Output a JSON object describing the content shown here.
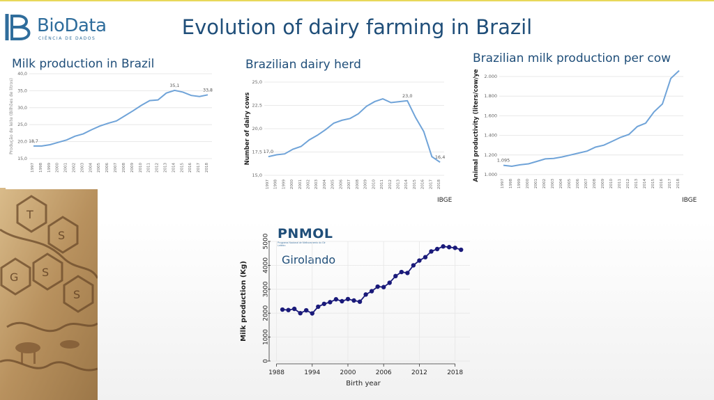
{
  "logo": {
    "brand": "BioData",
    "tagline": "CIÊNCIA DE DADOS"
  },
  "title": "Evolution of dairy farming in Brazil",
  "charts": {
    "milk": {
      "title": "Milk production in Brazil",
      "source": ""
    },
    "herd": {
      "title": "Brazilian dairy herd",
      "source": "IBGE"
    },
    "percow": {
      "title": "Brazilian milk production per cow",
      "source": "IBGE"
    },
    "giro": {
      "brand": "PNMOL",
      "brand_sub": "Programa Nacional de Melhoramento do Gir Leiteiro",
      "series_label": "Girolando"
    }
  },
  "chart_data": [
    {
      "id": "milk",
      "type": "line",
      "title": "Milk production in Brazil",
      "ylabel": "Produção de leite (Bilhões de litros)",
      "xlabel": "",
      "ylim": [
        15,
        40
      ],
      "yticks": [
        "15,0",
        "20,0",
        "25,0",
        "30,0",
        "35,0",
        "40,0"
      ],
      "x": [
        "1997",
        "1998",
        "1999",
        "2000",
        "2001",
        "2002",
        "2003",
        "2004",
        "2005",
        "2006",
        "2007",
        "2008",
        "2009",
        "2010",
        "2011",
        "2012",
        "2013",
        "2014",
        "2015",
        "2016",
        "2017",
        "2018"
      ],
      "values": [
        18.7,
        18.7,
        19.1,
        19.8,
        20.5,
        21.6,
        22.3,
        23.5,
        24.6,
        25.4,
        26.1,
        27.6,
        29.1,
        30.7,
        32.1,
        32.3,
        34.3,
        35.1,
        34.6,
        33.6,
        33.3,
        33.8
      ],
      "annotations": [
        {
          "index": 0,
          "label": "18,7"
        },
        {
          "index": 17,
          "label": "35,1"
        },
        {
          "index": 21,
          "label": "33,8"
        }
      ],
      "color": "#6fa3d8",
      "grid": true
    },
    {
      "id": "herd",
      "type": "line",
      "title": "Brazilian dairy herd",
      "ylabel": "Number of dairy cows",
      "xlabel": "",
      "ylim": [
        15,
        25
      ],
      "yticks": [
        "15,0",
        "17,5",
        "20,0",
        "22,5",
        "25,0"
      ],
      "x": [
        "1997",
        "1998",
        "1999",
        "2000",
        "2001",
        "2002",
        "2003",
        "2004",
        "2005",
        "2006",
        "2007",
        "2008",
        "2009",
        "2010",
        "2011",
        "2012",
        "2013",
        "2014",
        "2015",
        "2016",
        "2017",
        "2018"
      ],
      "values": [
        17.0,
        17.2,
        17.3,
        17.8,
        18.1,
        18.8,
        19.3,
        19.9,
        20.6,
        20.9,
        21.1,
        21.6,
        22.4,
        22.9,
        23.2,
        22.8,
        22.9,
        23.0,
        21.2,
        19.7,
        17.0,
        16.4
      ],
      "annotations": [
        {
          "index": 0,
          "label": "17,0"
        },
        {
          "index": 17,
          "label": "23,0"
        },
        {
          "index": 21,
          "label": "16,4"
        }
      ],
      "color": "#6fa3d8",
      "grid": true
    },
    {
      "id": "percow",
      "type": "line",
      "title": "Brazilian milk production per cow",
      "ylabel": "Animal productivity (liters/cow/ye",
      "xlabel": "",
      "ylim": [
        1000,
        2000
      ],
      "yticks": [
        "1.000",
        "1.200",
        "1.400",
        "1.600",
        "1.800",
        "2.000"
      ],
      "x": [
        "1997",
        "1998",
        "1999",
        "2000",
        "2001",
        "2002",
        "2003",
        "2004",
        "2005",
        "2006",
        "2007",
        "2008",
        "2009",
        "2010",
        "2011",
        "2012",
        "2013",
        "2014",
        "2015",
        "2016",
        "2017",
        "2018"
      ],
      "values": [
        1095,
        1085,
        1100,
        1110,
        1135,
        1160,
        1165,
        1180,
        1200,
        1220,
        1240,
        1280,
        1300,
        1340,
        1380,
        1410,
        1490,
        1525,
        1640,
        1720,
        1980,
        2060
      ],
      "annotations": [
        {
          "index": 0,
          "label": "1.095"
        }
      ],
      "color": "#6fa3d8",
      "grid": true
    },
    {
      "id": "giro",
      "type": "line",
      "title": "",
      "ylabel": "Milk production (Kg)",
      "xlabel": "Birth year",
      "xlim": [
        1987,
        2020.5
      ],
      "ylim": [
        0,
        5000
      ],
      "xticks": [
        1988,
        1994,
        2000,
        2006,
        2012,
        2018
      ],
      "yticks": [
        0,
        1000,
        2000,
        3000,
        4000,
        5000
      ],
      "x": [
        1989,
        1990,
        1991,
        1992,
        1993,
        1994,
        1995,
        1996,
        1997,
        1998,
        1999,
        2000,
        2001,
        2002,
        2003,
        2004,
        2005,
        2006,
        2007,
        2008,
        2009,
        2010,
        2011,
        2012,
        2013,
        2014,
        2015,
        2016,
        2017,
        2018,
        2019
      ],
      "values": [
        2150,
        2130,
        2180,
        2000,
        2120,
        1990,
        2270,
        2390,
        2460,
        2580,
        2500,
        2590,
        2530,
        2480,
        2780,
        2920,
        3110,
        3090,
        3270,
        3550,
        3720,
        3680,
        4000,
        4200,
        4340,
        4580,
        4680,
        4790,
        4760,
        4730,
        4650
      ],
      "color": "#1a1a7a",
      "grid": true
    }
  ]
}
